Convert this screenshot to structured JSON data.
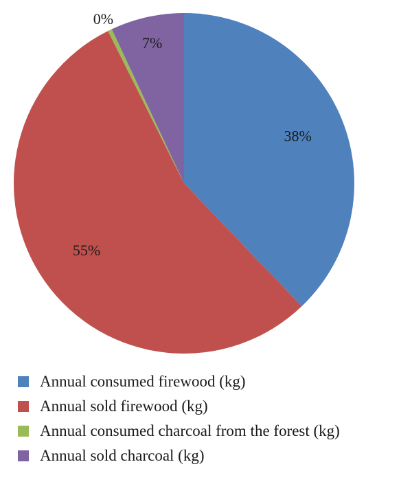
{
  "chart_data": {
    "type": "pie",
    "title": "",
    "slices": [
      {
        "name": "Annual consumed firewood (kg)",
        "value": 38,
        "label": "38%",
        "color": "#4F81BD"
      },
      {
        "name": "Annual sold firewood (kg)",
        "value": 55,
        "label": "55%",
        "color": "#C0504D"
      },
      {
        "name": "Annual consumed charcoal from the forest (kg)",
        "value": 0.4,
        "label": "0%",
        "color": "#9BBB59"
      },
      {
        "name": "Annual sold charcoal (kg)",
        "value": 7,
        "label": "7%",
        "color": "#8064A2"
      }
    ],
    "start_angle_deg": 0,
    "direction": "clockwise",
    "legend_position": "bottom"
  }
}
